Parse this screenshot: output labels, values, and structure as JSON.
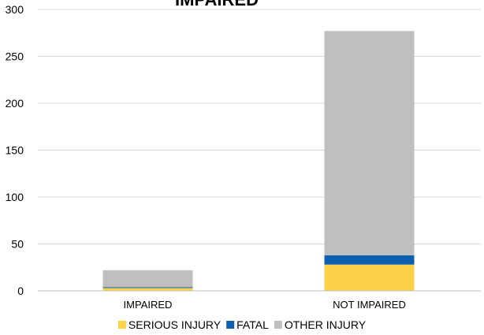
{
  "chart_data": {
    "type": "bar",
    "stacked": true,
    "title": "IMPAIRED",
    "categories": [
      "IMPAIRED",
      "NOT IMPAIRED"
    ],
    "series": [
      {
        "name": "SERIOUS INJURY",
        "values": [
          3,
          28
        ],
        "color": "#FDD24B"
      },
      {
        "name": "FATAL",
        "values": [
          1,
          10
        ],
        "color": "#0F5FAF"
      },
      {
        "name": "OTHER INJURY",
        "values": [
          18,
          239
        ],
        "color": "#BFBFBF"
      }
    ],
    "ylim": [
      0,
      300
    ],
    "yticks": [
      0,
      50,
      100,
      150,
      200,
      250,
      300
    ],
    "grid": true,
    "legend": "bottom"
  }
}
